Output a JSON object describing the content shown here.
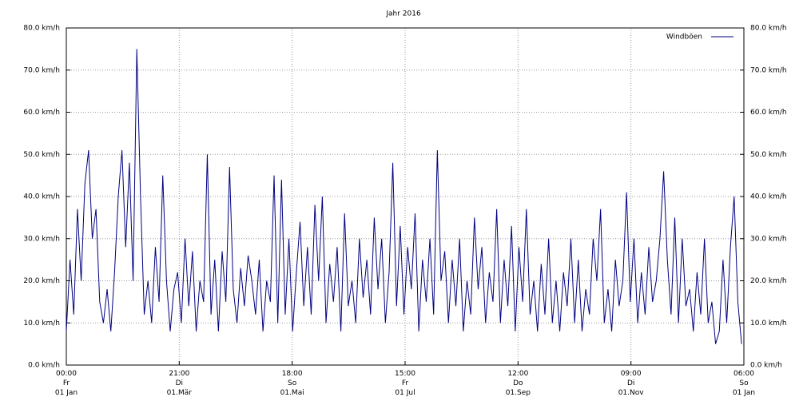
{
  "chart_data": {
    "type": "line",
    "title": "Jahr 2016",
    "x": [
      0,
      2,
      4,
      6,
      8,
      10,
      12,
      14,
      16,
      18,
      20,
      22,
      24,
      26,
      28,
      30,
      32,
      34,
      36,
      38,
      40,
      42,
      44,
      46,
      48,
      50,
      52,
      54,
      56,
      58,
      60,
      62,
      64,
      66,
      68,
      70,
      72,
      74,
      76,
      78,
      80,
      82,
      84,
      86,
      88,
      90,
      92,
      94,
      96,
      98,
      100,
      102,
      104,
      106,
      108,
      110,
      112,
      114,
      116,
      118,
      120,
      122,
      124,
      126,
      128,
      130,
      132,
      134,
      136,
      138,
      140,
      142,
      144,
      146,
      148,
      150,
      152,
      154,
      156,
      158,
      160,
      162,
      164,
      166,
      168,
      170,
      172,
      174,
      176,
      178,
      180,
      182,
      184,
      186,
      188,
      190,
      192,
      194,
      196,
      198,
      200,
      202,
      204,
      206,
      208,
      210,
      212,
      214,
      216,
      218,
      220,
      222,
      224,
      226,
      228,
      230,
      232,
      234,
      236,
      238,
      240,
      242,
      244,
      246,
      248,
      250,
      252,
      254,
      256,
      258,
      260,
      262,
      264,
      266,
      268,
      270,
      272,
      274,
      276,
      278,
      280,
      282,
      284,
      286,
      288,
      290,
      292,
      294,
      296,
      298,
      300,
      302,
      304,
      306,
      308,
      310,
      312,
      314,
      316,
      318,
      320,
      322,
      324,
      326,
      328,
      330,
      332,
      334,
      336,
      338,
      340,
      342,
      344,
      346,
      348,
      350,
      352,
      354,
      356,
      358,
      360,
      362,
      364
    ],
    "series": [
      {
        "name": "Windböen",
        "color": "#000080",
        "values": [
          8,
          25,
          12,
          37,
          20,
          43,
          51,
          30,
          37,
          15,
          10,
          18,
          8,
          22,
          40,
          51,
          28,
          48,
          20,
          75,
          40,
          12,
          20,
          10,
          28,
          15,
          45,
          20,
          8,
          18,
          22,
          10,
          30,
          14,
          27,
          8,
          20,
          15,
          50,
          12,
          25,
          8,
          27,
          15,
          47,
          18,
          10,
          23,
          14,
          26,
          20,
          12,
          25,
          8,
          20,
          15,
          45,
          10,
          44,
          12,
          30,
          8,
          22,
          34,
          14,
          28,
          12,
          38,
          20,
          40,
          10,
          24,
          15,
          28,
          8,
          36,
          14,
          20,
          10,
          30,
          16,
          25,
          12,
          35,
          18,
          30,
          10,
          22,
          48,
          14,
          33,
          12,
          28,
          18,
          36,
          8,
          25,
          15,
          30,
          12,
          51,
          20,
          27,
          10,
          25,
          14,
          30,
          8,
          20,
          12,
          35,
          18,
          28,
          10,
          22,
          15,
          37,
          10,
          25,
          14,
          33,
          8,
          28,
          15,
          37,
          12,
          20,
          8,
          24,
          12,
          30,
          10,
          20,
          8,
          22,
          14,
          30,
          10,
          25,
          8,
          18,
          12,
          30,
          20,
          37,
          10,
          18,
          8,
          25,
          14,
          20,
          41,
          15,
          30,
          10,
          22,
          12,
          28,
          15,
          20,
          30,
          46,
          25,
          12,
          35,
          10,
          30,
          14,
          18,
          8,
          22,
          12,
          30,
          10,
          15,
          5,
          8,
          25,
          10,
          28,
          40,
          15,
          5
        ]
      }
    ],
    "xlim": [
      0,
      365.25
    ],
    "xticks": [
      {
        "value": 0,
        "label": "00:00\nFr\n01 Jan"
      },
      {
        "value": 60.875,
        "label": "21:00\nDi\n01.Mär"
      },
      {
        "value": 121.75,
        "label": "18:00\nSo\n01.Mai"
      },
      {
        "value": 182.625,
        "label": "15:00\nFr\n01 Jul"
      },
      {
        "value": 243.5,
        "label": "12:00\nDo\n01.Sep"
      },
      {
        "value": 304.375,
        "label": "09:00\nDi\n01.Nov"
      },
      {
        "value": 365.25,
        "label": "06:00\nSo\n01 Jan"
      }
    ],
    "ylim": [
      0,
      80
    ],
    "yticks": [
      {
        "value": 0,
        "label": "0.0 km/h"
      },
      {
        "value": 10,
        "label": "10.0 km/h"
      },
      {
        "value": 20,
        "label": "20.0 km/h"
      },
      {
        "value": 30,
        "label": "30.0 km/h"
      },
      {
        "value": 40,
        "label": "40.0 km/h"
      },
      {
        "value": 50,
        "label": "50.0 km/h"
      },
      {
        "value": 60,
        "label": "60.0 km/h"
      },
      {
        "value": 70,
        "label": "70.0 km/h"
      },
      {
        "value": 80,
        "label": "80.0 km/h"
      }
    ],
    "grid": true,
    "legend": "top-right"
  }
}
